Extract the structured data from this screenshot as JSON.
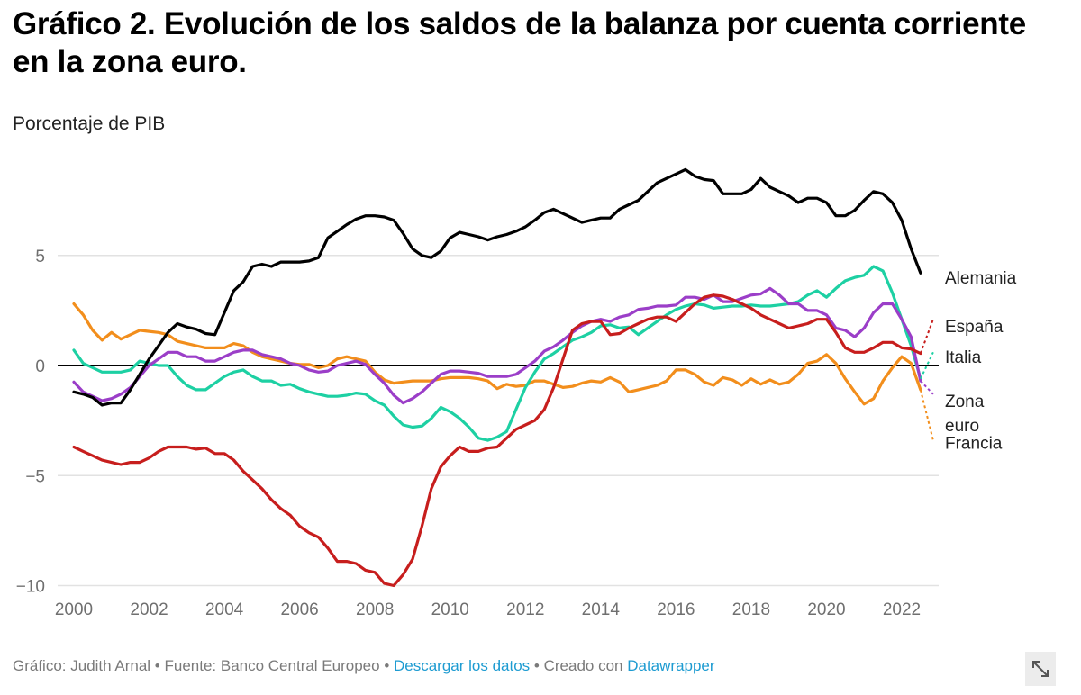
{
  "header": {
    "title": "Gráfico 2. Evolución de los saldos de la balanza por cuenta corriente en la zona euro.",
    "subtitle": "Porcentaje de PIB"
  },
  "footer": {
    "credit": "Gráfico: Judith Arnal",
    "separator": " • ",
    "source": "Fuente: Banco Central Europeo",
    "download_link": "Descargar los datos",
    "created_with": "Creado con",
    "tool_link": "Datawrapper",
    "expand_icon": "expand-arrow-icon"
  },
  "chart_data": {
    "type": "line",
    "title": "Gráfico 2. Evolución de los saldos de la balanza por cuenta corriente en la zona euro.",
    "subtitle": "Porcentaje de PIB",
    "xlabel": "",
    "ylabel": "Porcentaje de PIB",
    "xlim": [
      2000,
      2022.75
    ],
    "ylim": [
      -10,
      9.5
    ],
    "x_ticks": [
      2000,
      2002,
      2004,
      2006,
      2008,
      2010,
      2012,
      2014,
      2016,
      2018,
      2020,
      2022
    ],
    "x_tick_labels": [
      "2000",
      "2002",
      "2004",
      "2006",
      "2008",
      "2010",
      "2012",
      "2014",
      "2016",
      "2018",
      "2020",
      "2022"
    ],
    "y_ticks": [
      -10,
      -5,
      0,
      5
    ],
    "y_tick_labels": [
      "−10",
      "−5",
      "0",
      "5"
    ],
    "grid": true,
    "legend": "direct-labels-right",
    "x_start": 2000,
    "x_step": 0.25,
    "series": [
      {
        "name": "Alemania",
        "color": "#000000",
        "values": [
          -1.2,
          -1.3,
          -1.45,
          -1.8,
          -1.7,
          -1.7,
          -1.1,
          -0.4,
          0.3,
          0.9,
          1.5,
          1.9,
          1.75,
          1.65,
          1.45,
          1.4,
          2.4,
          3.4,
          3.8,
          4.5,
          4.6,
          4.5,
          4.7,
          4.7,
          4.7,
          4.75,
          4.9,
          5.8,
          6.1,
          6.4,
          6.65,
          6.8,
          6.8,
          6.75,
          6.6,
          6.0,
          5.3,
          5.0,
          4.9,
          5.2,
          5.8,
          6.05,
          5.95,
          5.85,
          5.7,
          5.85,
          5.95,
          6.1,
          6.3,
          6.6,
          6.95,
          7.1,
          6.9,
          6.7,
          6.5,
          6.6,
          6.7,
          6.7,
          7.1,
          7.3,
          7.5,
          7.9,
          8.3,
          8.5,
          8.7,
          8.9,
          8.6,
          8.45,
          8.4,
          7.8,
          7.8,
          7.8,
          8.0,
          8.5,
          8.1,
          7.9,
          7.7,
          7.4,
          7.6,
          7.6,
          7.4,
          6.8,
          6.8,
          7.05,
          7.5,
          7.9,
          7.8,
          7.4,
          6.6,
          5.3,
          4.2
        ]
      },
      {
        "name": "España",
        "color": "#c71e1d",
        "values": [
          -3.7,
          -3.9,
          -4.1,
          -4.3,
          -4.4,
          -4.5,
          -4.4,
          -4.4,
          -4.2,
          -3.9,
          -3.7,
          -3.7,
          -3.7,
          -3.8,
          -3.75,
          -4.0,
          -4.0,
          -4.3,
          -4.8,
          -5.2,
          -5.6,
          -6.1,
          -6.5,
          -6.8,
          -7.3,
          -7.6,
          -7.8,
          -8.3,
          -8.9,
          -8.9,
          -9.0,
          -9.3,
          -9.4,
          -9.9,
          -10.0,
          -9.5,
          -8.8,
          -7.3,
          -5.6,
          -4.6,
          -4.1,
          -3.7,
          -3.9,
          -3.9,
          -3.75,
          -3.7,
          -3.3,
          -2.9,
          -2.7,
          -2.5,
          -2.0,
          -1.0,
          0.3,
          1.6,
          1.9,
          2.0,
          2.0,
          1.4,
          1.45,
          1.7,
          1.9,
          2.1,
          2.2,
          2.2,
          2.0,
          2.4,
          2.8,
          3.1,
          3.2,
          3.15,
          3.0,
          2.8,
          2.6,
          2.3,
          2.1,
          1.9,
          1.7,
          1.8,
          1.9,
          2.1,
          2.1,
          1.5,
          0.8,
          0.6,
          0.6,
          0.8,
          1.05,
          1.05,
          0.8,
          0.75,
          0.55
        ]
      },
      {
        "name": "Italia",
        "color": "#1dd0a3",
        "values": [
          0.7,
          0.1,
          -0.1,
          -0.3,
          -0.3,
          -0.3,
          -0.2,
          0.2,
          0.1,
          0.0,
          0.0,
          -0.5,
          -0.9,
          -1.1,
          -1.1,
          -0.8,
          -0.5,
          -0.3,
          -0.2,
          -0.5,
          -0.7,
          -0.7,
          -0.9,
          -0.85,
          -1.05,
          -1.2,
          -1.3,
          -1.4,
          -1.4,
          -1.35,
          -1.25,
          -1.3,
          -1.6,
          -1.8,
          -2.3,
          -2.7,
          -2.8,
          -2.75,
          -2.4,
          -1.9,
          -2.1,
          -2.4,
          -2.8,
          -3.3,
          -3.4,
          -3.25,
          -3.0,
          -2.0,
          -1.0,
          -0.3,
          0.3,
          0.55,
          0.85,
          1.15,
          1.3,
          1.5,
          1.8,
          1.85,
          1.7,
          1.75,
          1.4,
          1.7,
          2.0,
          2.3,
          2.55,
          2.7,
          2.8,
          2.75,
          2.6,
          2.65,
          2.7,
          2.7,
          2.75,
          2.7,
          2.7,
          2.75,
          2.8,
          2.9,
          3.2,
          3.4,
          3.1,
          3.5,
          3.85,
          4.0,
          4.1,
          4.5,
          4.3,
          3.3,
          2.1,
          0.9,
          -0.6
        ]
      },
      {
        "name": "Zona euro",
        "color": "#9b3ec8",
        "values": [
          -0.75,
          -1.2,
          -1.4,
          -1.6,
          -1.5,
          -1.3,
          -1.0,
          -0.5,
          0.0,
          0.3,
          0.6,
          0.6,
          0.4,
          0.4,
          0.2,
          0.2,
          0.4,
          0.6,
          0.7,
          0.7,
          0.5,
          0.4,
          0.3,
          0.1,
          0.0,
          -0.2,
          -0.3,
          -0.25,
          0.0,
          0.1,
          0.2,
          0.05,
          -0.4,
          -0.8,
          -1.35,
          -1.7,
          -1.5,
          -1.2,
          -0.8,
          -0.4,
          -0.25,
          -0.25,
          -0.3,
          -0.35,
          -0.5,
          -0.5,
          -0.5,
          -0.4,
          -0.1,
          0.2,
          0.65,
          0.85,
          1.15,
          1.5,
          1.8,
          2.0,
          2.1,
          2.0,
          2.2,
          2.3,
          2.55,
          2.6,
          2.7,
          2.7,
          2.75,
          3.1,
          3.1,
          3.0,
          3.2,
          2.9,
          2.9,
          3.05,
          3.2,
          3.25,
          3.5,
          3.2,
          2.8,
          2.8,
          2.5,
          2.5,
          2.3,
          1.7,
          1.6,
          1.3,
          1.7,
          2.4,
          2.8,
          2.8,
          2.1,
          1.3,
          -0.7
        ]
      },
      {
        "name": "Francia",
        "color": "#f28e1c",
        "values": [
          2.8,
          2.3,
          1.6,
          1.15,
          1.5,
          1.2,
          1.4,
          1.6,
          1.55,
          1.5,
          1.4,
          1.1,
          1.0,
          0.9,
          0.8,
          0.8,
          0.8,
          1.0,
          0.9,
          0.6,
          0.4,
          0.3,
          0.2,
          0.1,
          0.05,
          0.05,
          -0.1,
          0.0,
          0.3,
          0.4,
          0.3,
          0.2,
          -0.3,
          -0.65,
          -0.8,
          -0.75,
          -0.7,
          -0.7,
          -0.7,
          -0.6,
          -0.55,
          -0.55,
          -0.55,
          -0.6,
          -0.7,
          -1.05,
          -0.85,
          -0.95,
          -0.9,
          -0.7,
          -0.7,
          -0.85,
          -1.0,
          -0.95,
          -0.8,
          -0.7,
          -0.75,
          -0.55,
          -0.75,
          -1.2,
          -1.1,
          -1.0,
          -0.9,
          -0.7,
          -0.2,
          -0.2,
          -0.4,
          -0.75,
          -0.9,
          -0.55,
          -0.65,
          -0.9,
          -0.6,
          -0.85,
          -0.65,
          -0.85,
          -0.75,
          -0.4,
          0.1,
          0.2,
          0.5,
          0.1,
          -0.6,
          -1.2,
          -1.75,
          -1.5,
          -0.7,
          -0.1,
          0.4,
          0.1,
          -1.1
        ]
      }
    ],
    "projections": [
      {
        "name": "España",
        "from": 0.55,
        "to": 2.1
      },
      {
        "name": "Italia",
        "from": -0.6,
        "to": 0.6
      },
      {
        "name": "Zona euro",
        "from": -0.7,
        "to": -1.3
      },
      {
        "name": "Francia",
        "from": -1.1,
        "to": -3.4
      }
    ],
    "series_labels": [
      {
        "name": "Alemania",
        "text": "Alemania",
        "y": 4.0
      },
      {
        "name": "España",
        "text": "España",
        "y": 1.8
      },
      {
        "name": "Italia",
        "text": "Italia",
        "y": 0.4
      },
      {
        "name": "Zona euro",
        "text": "Zona",
        "text2": "euro",
        "y": -1.6
      },
      {
        "name": "Francia",
        "text": "Francia",
        "y": -3.5
      }
    ]
  }
}
